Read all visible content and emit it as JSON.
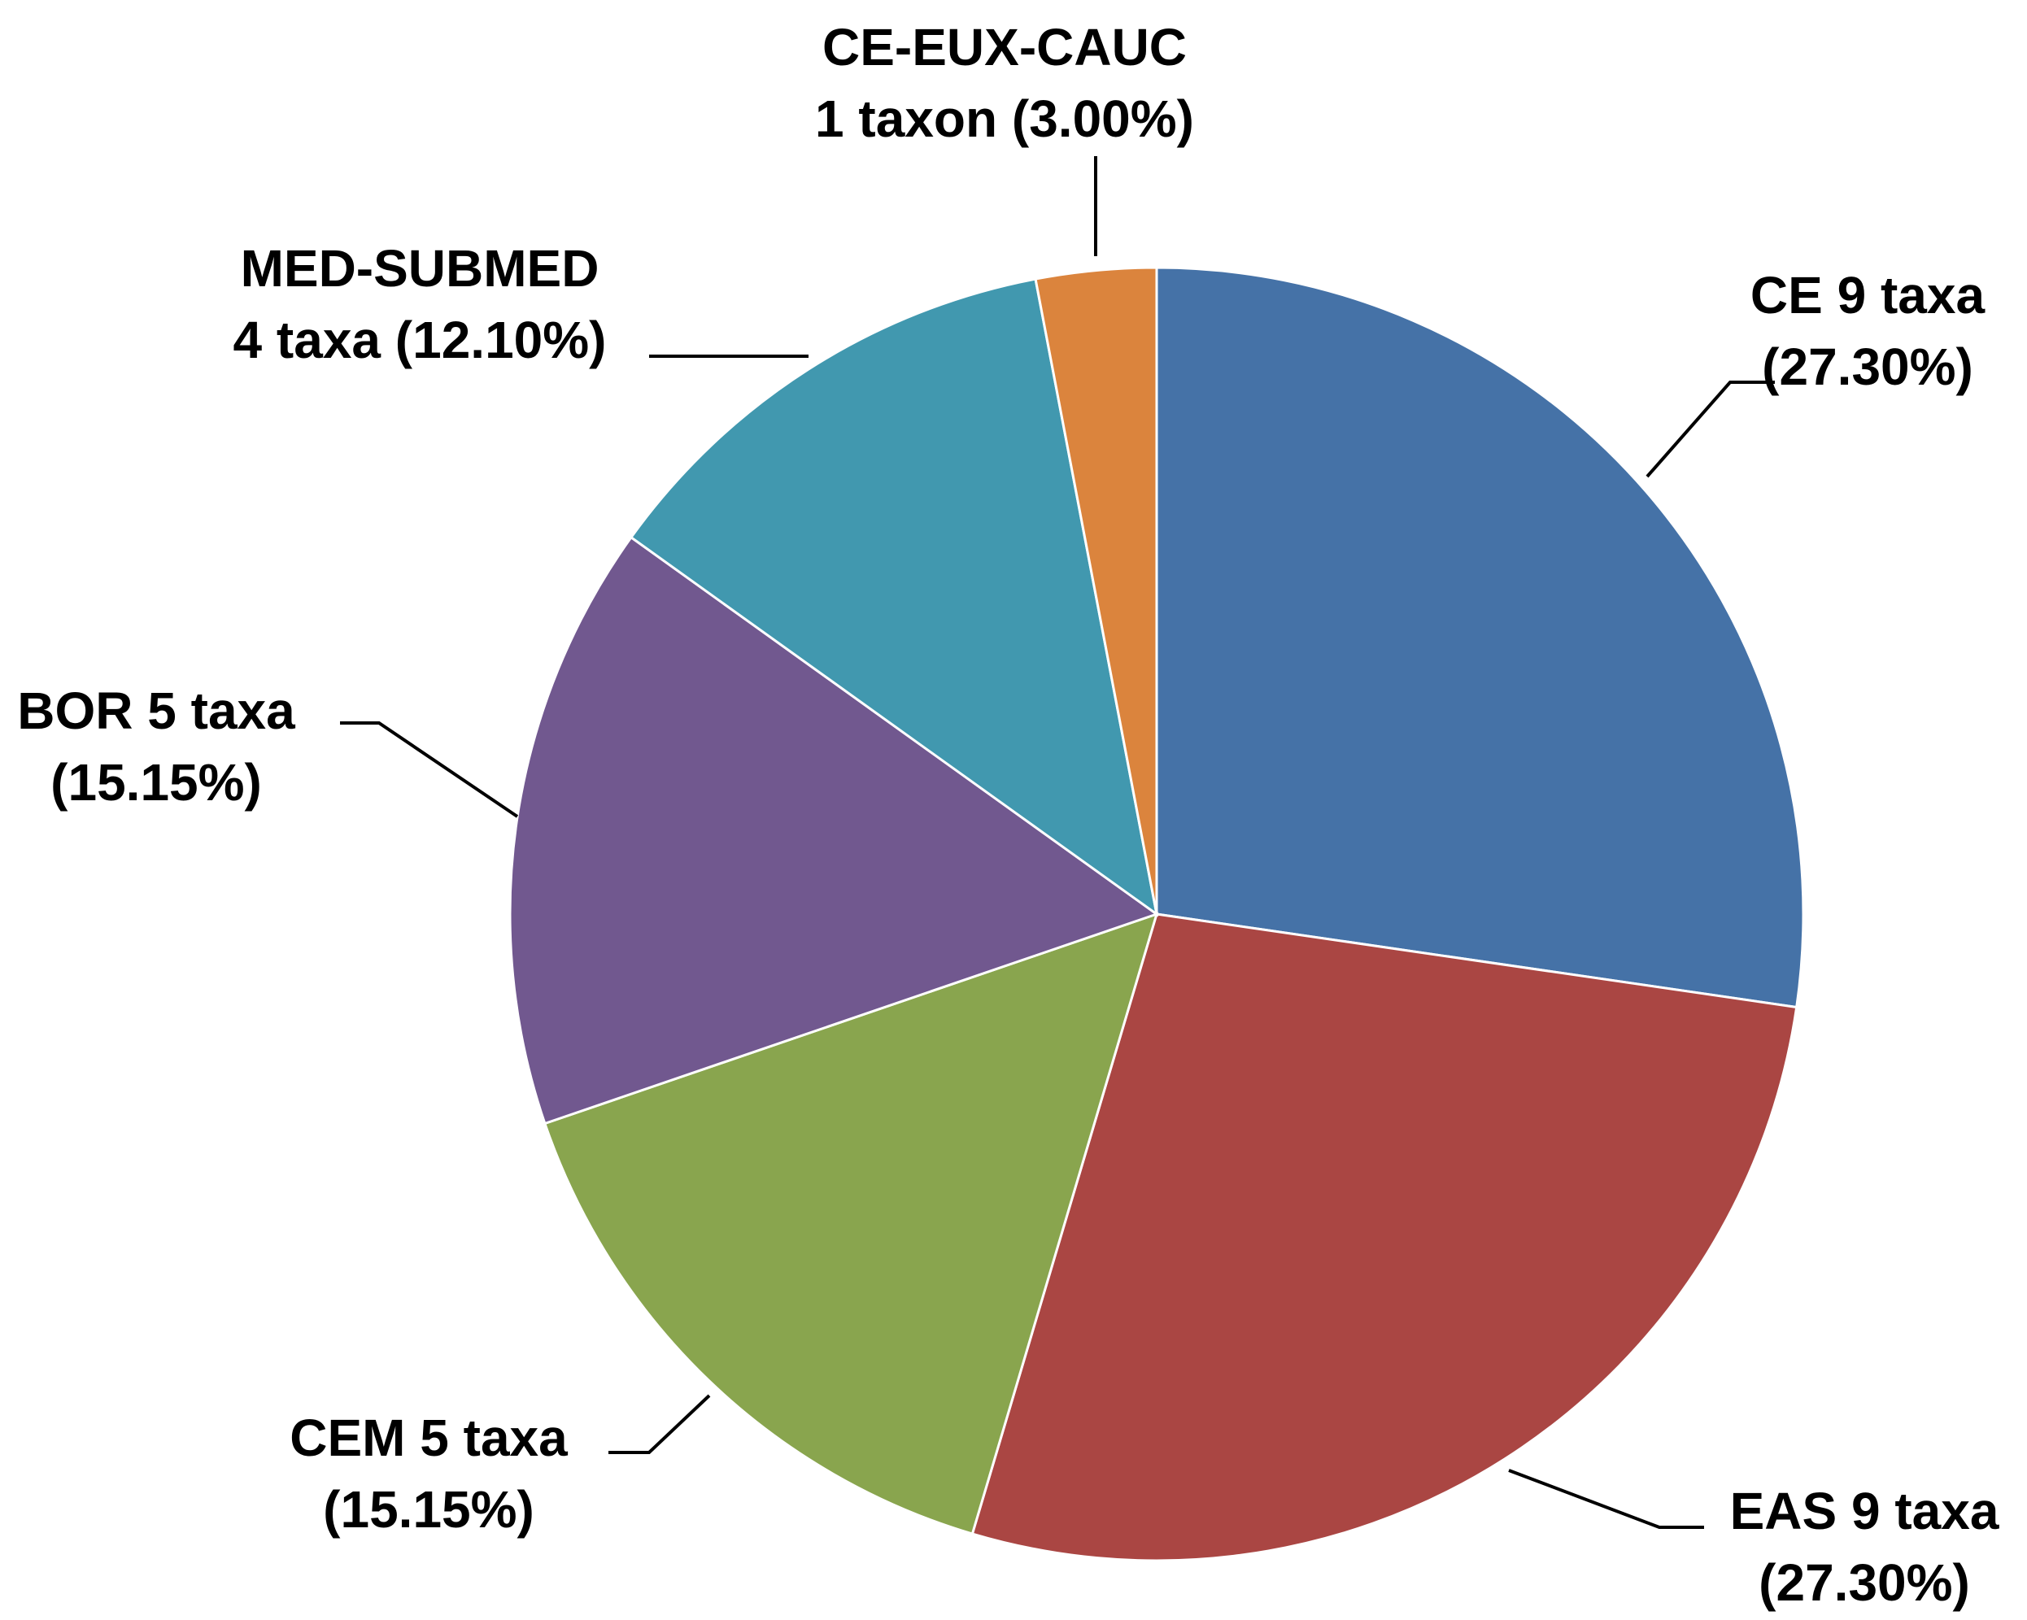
{
  "chart_data": {
    "type": "pie",
    "title": "",
    "slices": [
      {
        "name": "CE",
        "count": 9,
        "percent": 27.3,
        "color": "#4572A7",
        "label_lines": [
          "CE 9 taxa",
          "(27.30%)"
        ]
      },
      {
        "name": "EAS",
        "count": 9,
        "percent": 27.3,
        "color": "#AA4643",
        "label_lines": [
          "EAS 9 taxa",
          "(27.30%)"
        ]
      },
      {
        "name": "CEM",
        "count": 5,
        "percent": 15.15,
        "color": "#89A54E",
        "label_lines": [
          "CEM 5 taxa",
          "(15.15%)"
        ]
      },
      {
        "name": "BOR",
        "count": 5,
        "percent": 15.15,
        "color": "#71588F",
        "label_lines": [
          "BOR 5 taxa",
          "(15.15%)"
        ]
      },
      {
        "name": "MED-SUBMED",
        "count": 4,
        "percent": 12.1,
        "color": "#4198AF",
        "label_lines": [
          "MED-SUBMED",
          "4 taxa (12.10%)"
        ]
      },
      {
        "name": "CE-EUX-CAUC",
        "count": 1,
        "percent": 3.0,
        "color": "#DB843D",
        "label_lines": [
          "CE-EUX-CAUC",
          "1 taxon (3.00%)"
        ]
      }
    ],
    "legend": "none"
  }
}
